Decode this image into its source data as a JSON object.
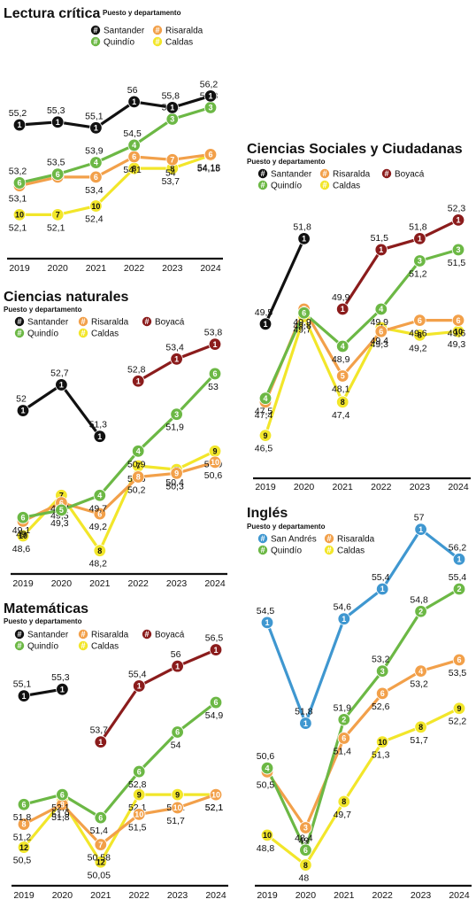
{
  "colors": {
    "santander": "#111111",
    "risaralda": "#f2a04a",
    "quindio": "#6cb845",
    "caldas": "#f2e62a",
    "boyaca": "#8b1c1c",
    "san_andres": "#3f97d0"
  },
  "legend_marker": "#",
  "chart_data": [
    {
      "type": "line",
      "title": "Lectura crítica",
      "subtitle": "Puesto y departamento",
      "categories": [
        "2019",
        "2020",
        "2021",
        "2022",
        "2023",
        "2024"
      ],
      "ylim": [
        51.5,
        56.7
      ],
      "legend": [
        "Santander",
        "Risaralda",
        "Quindío",
        "Caldas"
      ],
      "series": [
        {
          "name": "Santander",
          "color": "santander",
          "values": [
            55.2,
            55.3,
            55.1,
            56,
            55.8,
            56.2
          ],
          "labels": [
            "55,2",
            "55,3",
            "55,1",
            "56",
            "55,8",
            "56,2"
          ],
          "ranks": [
            "1",
            "1",
            "1",
            "1",
            "1",
            "1"
          ]
        },
        {
          "name": "Quindío",
          "color": "quindio",
          "values": [
            53.2,
            53.5,
            53.9,
            54.5,
            55.4,
            55.8
          ],
          "labels": [
            "53,2",
            "53,5",
            "53,9",
            "54,5",
            "55,4",
            "55,8"
          ],
          "ranks": [
            "6",
            "6",
            "4",
            "4",
            "3",
            "3"
          ]
        },
        {
          "name": "Risaralda",
          "color": "risaralda",
          "values": [
            53.1,
            53.4,
            53.4,
            54.1,
            54,
            54.18
          ],
          "labels": [
            "53,1",
            "",
            "53,4",
            "54,1",
            "54",
            "54,18"
          ],
          "ranks": [
            "6",
            "6",
            "6",
            "6",
            "7",
            "6"
          ]
        },
        {
          "name": "Caldas",
          "color": "caldas",
          "values": [
            52.1,
            52.1,
            52.4,
            53.7,
            53.7,
            54.15
          ],
          "labels": [
            "52,1",
            "52,1",
            "52,4",
            "",
            "53,7",
            "54,15"
          ],
          "ranks": [
            "10",
            "7",
            "10",
            "8",
            "8",
            "10"
          ]
        }
      ]
    },
    {
      "type": "line",
      "title": "Ciencias naturales",
      "subtitle": "Puesto y departamento",
      "categories": [
        "2019",
        "2020",
        "2021",
        "2022",
        "2023",
        "2024"
      ],
      "ylim": [
        48.0,
        54.2
      ],
      "legend": [
        "Santander",
        "Risaralda",
        "Boyacá",
        "Quindío",
        "Caldas"
      ],
      "series": [
        {
          "name": "Santander",
          "color": "santander",
          "values": [
            52,
            52.7,
            51.3,
            null,
            null,
            null
          ],
          "labels": [
            "52",
            "52,7",
            "51,3",
            "",
            "",
            ""
          ],
          "ranks": [
            "1",
            "1",
            "1",
            "",
            "",
            ""
          ]
        },
        {
          "name": "Boyacá",
          "color": "boyaca",
          "values": [
            null,
            null,
            null,
            52.8,
            53.4,
            53.8
          ],
          "labels": [
            "",
            "",
            "",
            "52,8",
            "53,4",
            "53,8"
          ],
          "ranks": [
            "",
            "",
            "",
            "1",
            "1",
            "1"
          ]
        },
        {
          "name": "Quindío",
          "color": "quindio",
          "values": [
            49.1,
            49.3,
            49.7,
            50.9,
            51.9,
            53
          ],
          "labels": [
            "49,1",
            "49,3",
            "49,7",
            "50,9",
            "51,9",
            "53"
          ],
          "ranks": [
            "6",
            "5",
            "4",
            "4",
            "3",
            "6"
          ]
        },
        {
          "name": "Risaralda",
          "color": "risaralda",
          "values": [
            49,
            49.5,
            49.2,
            50.2,
            50.3,
            50.6
          ],
          "labels": [
            "49",
            "49,5",
            "49,2",
            "50,2",
            "50,3",
            "50,6"
          ],
          "ranks": [
            "8",
            "6",
            "6",
            "8",
            "9",
            "10"
          ]
        },
        {
          "name": "Caldas",
          "color": "caldas",
          "values": [
            48.6,
            49.7,
            48.2,
            50.5,
            50.4,
            50.9
          ],
          "labels": [
            "48,6",
            "49,7",
            "48,2",
            "50,5",
            "50,4",
            "50,9"
          ],
          "ranks": [
            "10",
            "7",
            "8",
            "7",
            "7",
            "9"
          ]
        }
      ]
    },
    {
      "type": "line",
      "title": "Matemáticas",
      "subtitle": "Puesto y departamento",
      "categories": [
        "2019",
        "2020",
        "2021",
        "2022",
        "2023",
        "2024"
      ],
      "ylim": [
        49.6,
        57.0
      ],
      "legend": [
        "Santander",
        "Risaralda",
        "Boyacá",
        "Quindío",
        "Caldas"
      ],
      "series": [
        {
          "name": "Santander",
          "color": "santander",
          "values": [
            55.1,
            55.3,
            null,
            null,
            null,
            null
          ],
          "labels": [
            "55,1",
            "55,3",
            "",
            "",
            "",
            ""
          ],
          "ranks": [
            "1",
            "1",
            "",
            "",
            "",
            ""
          ]
        },
        {
          "name": "Boyacá",
          "color": "boyaca",
          "values": [
            null,
            null,
            53.7,
            55.4,
            56,
            56.5
          ],
          "labels": [
            "",
            "",
            "53,7",
            "55,4",
            "56",
            "56,5"
          ],
          "ranks": [
            "",
            "",
            "1",
            "1",
            "1",
            "1"
          ]
        },
        {
          "name": "Quindío",
          "color": "quindio",
          "values": [
            51.8,
            52.1,
            51.4,
            52.8,
            54,
            54.9
          ],
          "labels": [
            "51,8",
            "52,1",
            "51,4",
            "52,8",
            "54",
            "54,9"
          ],
          "ranks": [
            "6",
            "6",
            "6",
            "6",
            "6",
            "6"
          ]
        },
        {
          "name": "Risaralda",
          "color": "risaralda",
          "values": [
            51.2,
            51.8,
            50.58,
            51.5,
            51.7,
            52.1
          ],
          "labels": [
            "51,2",
            "51,8",
            "50,58",
            "51,5",
            "51,7",
            "52,1"
          ],
          "ranks": [
            "8",
            "8",
            "7",
            "10",
            "10",
            "10"
          ]
        },
        {
          "name": "Caldas",
          "color": "caldas",
          "values": [
            50.5,
            51.9,
            50.05,
            52.1,
            52.1,
            52.1
          ],
          "labels": [
            "50,5",
            "51,9",
            "50,05",
            "52,1",
            "52,1",
            "52,1"
          ],
          "ranks": [
            "12",
            "9",
            "12",
            "9",
            "9",
            "9"
          ]
        }
      ]
    },
    {
      "type": "line",
      "title": "Ciencias Sociales y Ciudadanas",
      "subtitle": "Puesto y departamento",
      "categories": [
        "2019",
        "2020",
        "2021",
        "2022",
        "2023",
        "2024"
      ],
      "ylim": [
        46.3,
        52.5
      ],
      "legend": [
        "Santander",
        "Risaralda",
        "Boyacá",
        "Quindío",
        "Caldas"
      ],
      "series": [
        {
          "name": "Santander",
          "color": "santander",
          "values": [
            49.5,
            51.8,
            null,
            null,
            null,
            null
          ],
          "labels": [
            "49,5",
            "51,8",
            "",
            "",
            "",
            ""
          ],
          "ranks": [
            "1",
            "1",
            "",
            "",
            "",
            ""
          ]
        },
        {
          "name": "Boyacá",
          "color": "boyaca",
          "values": [
            null,
            null,
            49.9,
            51.5,
            51.8,
            52.3
          ],
          "labels": [
            "",
            "",
            "49,9",
            "51,5",
            "51,8",
            "52,3"
          ],
          "ranks": [
            "",
            "",
            "1",
            "1",
            "1",
            "1"
          ]
        },
        {
          "name": "Quindío",
          "color": "quindio",
          "values": [
            47.5,
            49.8,
            48.9,
            49.9,
            51.2,
            51.5
          ],
          "labels": [
            "47,5",
            "49,8",
            "48,9",
            "49,9",
            "51,2",
            "51,5"
          ],
          "ranks": [
            "4",
            "6",
            "4",
            "4",
            "3",
            "3"
          ]
        },
        {
          "name": "Risaralda",
          "color": "risaralda",
          "values": [
            47.4,
            49.9,
            48.1,
            49.3,
            49.6,
            49.6
          ],
          "labels": [
            "47,4",
            "49,9",
            "48,1",
            "49,3",
            "49,6",
            "49,6"
          ],
          "ranks": [
            "5",
            "5",
            "5",
            "6",
            "6",
            "6"
          ]
        },
        {
          "name": "Caldas",
          "color": "caldas",
          "values": [
            46.5,
            49.7,
            47.4,
            49.4,
            49.2,
            49.3
          ],
          "labels": [
            "46,5",
            "49,7",
            "47,4",
            "49,4",
            "49,2",
            "49,3"
          ],
          "ranks": [
            "9",
            "7",
            "8",
            "6",
            "8",
            "10"
          ]
        }
      ]
    },
    {
      "type": "line",
      "title": "Inglés",
      "subtitle": "Puesto y departamento",
      "categories": [
        "2019",
        "2020",
        "2021",
        "2022",
        "2023",
        "2024"
      ],
      "ylim": [
        47.8,
        57.3
      ],
      "legend": [
        "San Andrés",
        "Risaralda",
        "Quindío",
        "Caldas"
      ],
      "series": [
        {
          "name": "San Andrés",
          "color": "san_andres",
          "values": [
            54.5,
            51.8,
            54.6,
            55.4,
            57,
            56.2
          ],
          "labels": [
            "54,5",
            "51,8",
            "54,6",
            "55,4",
            "57",
            "56,2"
          ],
          "ranks": [
            "1",
            "1",
            "1",
            "1",
            "1",
            "1"
          ]
        },
        {
          "name": "Quindío",
          "color": "quindio",
          "values": [
            50.6,
            48.4,
            51.9,
            53.2,
            54.8,
            55.4
          ],
          "labels": [
            "50,6",
            "48,4",
            "51,9",
            "53,2",
            "54,8",
            "55,4"
          ],
          "ranks": [
            "4",
            "6",
            "2",
            "3",
            "2",
            "2"
          ]
        },
        {
          "name": "Risaralda",
          "color": "risaralda",
          "values": [
            50.5,
            49,
            51.4,
            52.6,
            53.2,
            53.5
          ],
          "labels": [
            "50,5",
            "49",
            "51,4",
            "52,6",
            "53,2",
            "53,5"
          ],
          "ranks": [
            "6",
            "3",
            "6",
            "6",
            "4",
            "6"
          ]
        },
        {
          "name": "Caldas",
          "color": "caldas",
          "values": [
            48.8,
            48,
            49.7,
            51.3,
            51.7,
            52.2
          ],
          "labels": [
            "48,8",
            "48",
            "49,7",
            "51,3",
            "51,7",
            "52,2"
          ],
          "ranks": [
            "10",
            "8",
            "8",
            "10",
            "8",
            "9"
          ]
        }
      ]
    }
  ]
}
